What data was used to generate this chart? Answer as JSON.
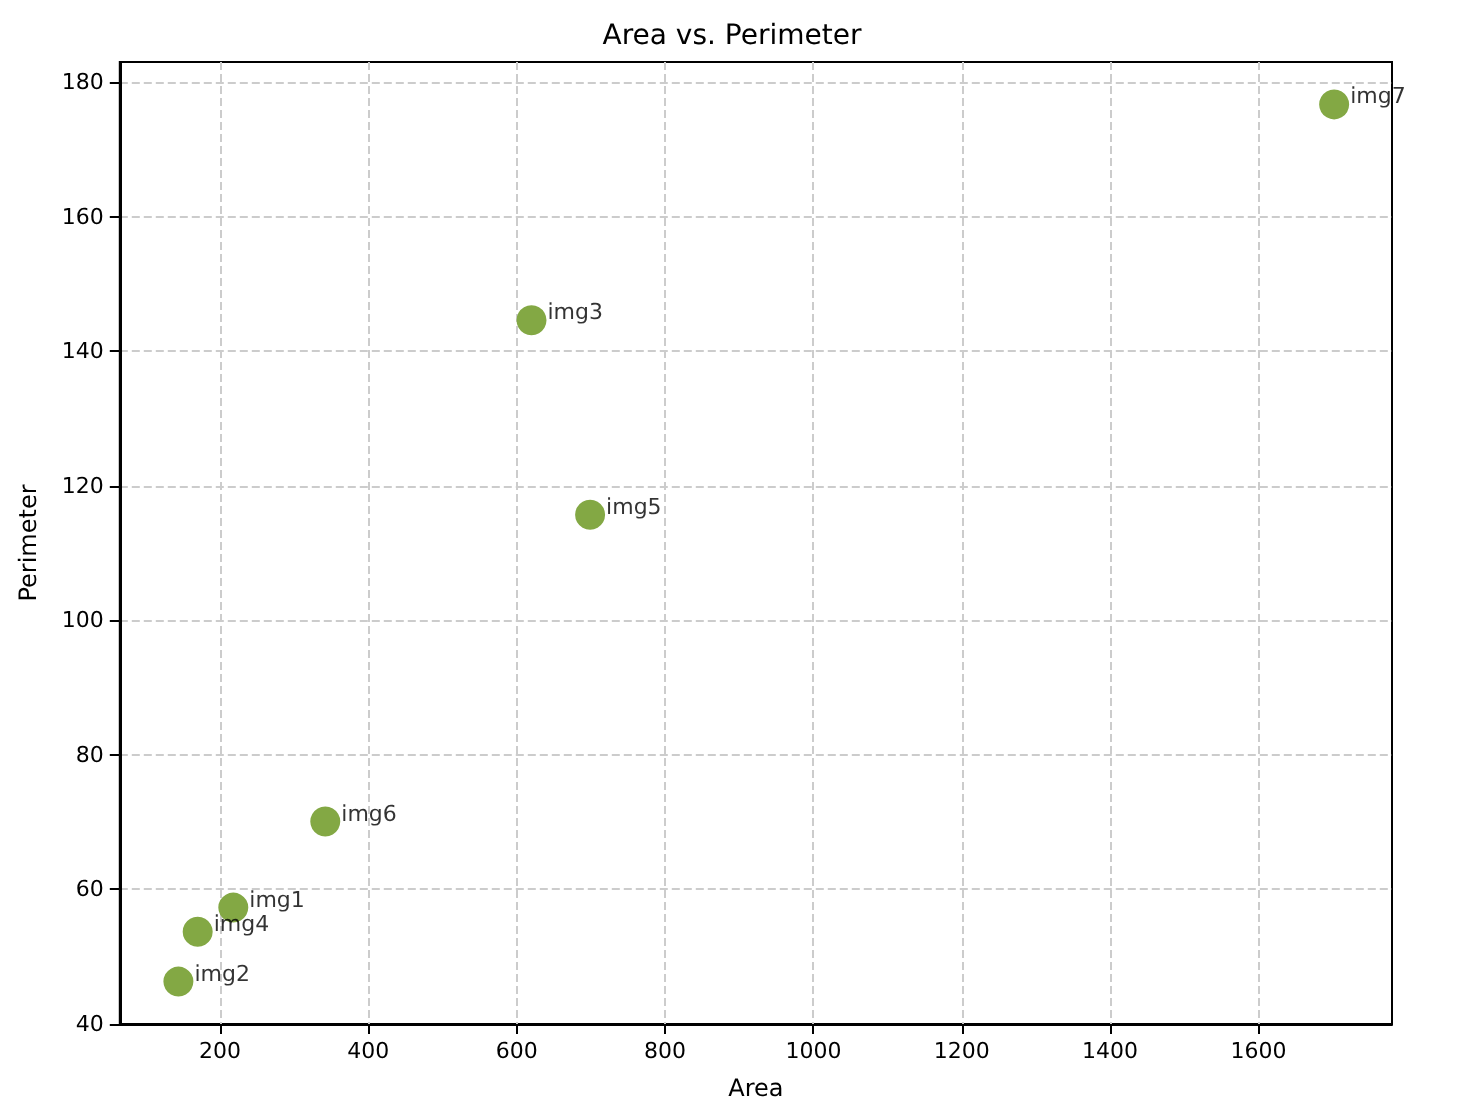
{
  "chart_data": {
    "type": "scatter",
    "title": "Area vs. Perimeter",
    "xlabel": "Area",
    "ylabel": "Perimeter",
    "x": [
      218,
      144,
      620,
      170,
      699,
      342,
      1702
    ],
    "values": [
      57.3,
      46.3,
      144.6,
      53.7,
      115.7,
      70.1,
      176.7
    ],
    "color": "#83a844",
    "marker": "circle",
    "grid": true,
    "xlim": [
      65,
      1780
    ],
    "xticks": [
      200,
      400,
      600,
      800,
      1000,
      1200,
      1400,
      1600
    ],
    "ylim": [
      40,
      183
    ],
    "yticks": [
      40,
      60,
      80,
      100,
      120,
      140,
      160,
      180
    ],
    "annotations": [
      {
        "text": "img1",
        "x": 218,
        "y": 57.3
      },
      {
        "text": "img2",
        "x": 144,
        "y": 46.3
      },
      {
        "text": "img3",
        "x": 620,
        "y": 144.6
      },
      {
        "text": "img4",
        "x": 170,
        "y": 53.7
      },
      {
        "text": "img5",
        "x": 699,
        "y": 115.7
      },
      {
        "text": "img6",
        "x": 342,
        "y": 70.1
      },
      {
        "text": "img7",
        "x": 1702,
        "y": 176.7
      }
    ]
  }
}
